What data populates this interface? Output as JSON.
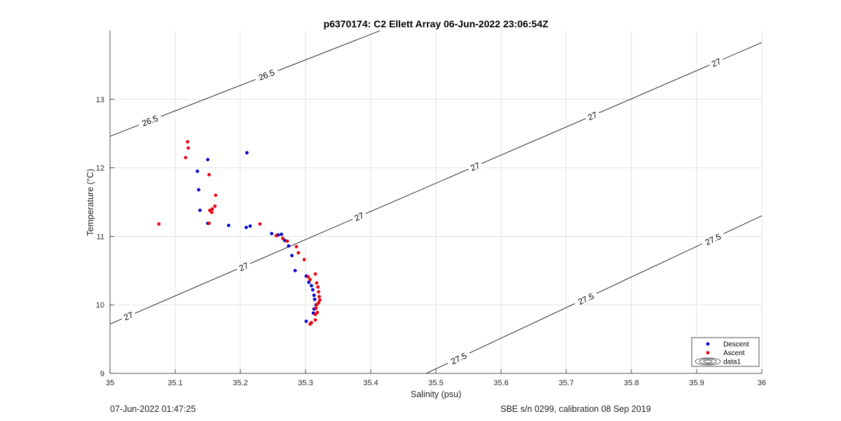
{
  "chart_data": {
    "type": "scatter",
    "title": "p6370174: C2 Ellett Array 06-Jun-2022 23:06:54Z",
    "xlabel": "Salinity (psu)",
    "ylabel": "Temperature (°C)",
    "xlim": [
      35,
      36
    ],
    "ylim": [
      9,
      14
    ],
    "xticks": [
      "35",
      "35.1",
      "35.2",
      "35.3",
      "35.4",
      "35.5",
      "35.6",
      "35.7",
      "35.8",
      "35.9",
      "36"
    ],
    "yticks": [
      "9",
      "10",
      "11",
      "12",
      "13"
    ],
    "grid": true,
    "legend_position": "bottom-right",
    "series": [
      {
        "name": "Descent",
        "color": "#0000cc",
        "points": [
          [
            35.15,
            12.12
          ],
          [
            35.21,
            12.22
          ],
          [
            35.134,
            11.95
          ],
          [
            35.136,
            11.68
          ],
          [
            35.138,
            11.38
          ],
          [
            35.15,
            11.19
          ],
          [
            35.182,
            11.16
          ],
          [
            35.209,
            11.13
          ],
          [
            35.215,
            11.15
          ],
          [
            35.248,
            11.04
          ],
          [
            35.258,
            11.02
          ],
          [
            35.263,
            11.03
          ],
          [
            35.268,
            10.94
          ],
          [
            35.274,
            10.86
          ],
          [
            35.279,
            10.72
          ],
          [
            35.284,
            10.5
          ],
          [
            35.301,
            10.42
          ],
          [
            35.305,
            10.33
          ],
          [
            35.309,
            10.28
          ],
          [
            35.311,
            10.22
          ],
          [
            35.313,
            10.14
          ],
          [
            35.314,
            10.08
          ],
          [
            35.316,
            10.0
          ],
          [
            35.313,
            9.94
          ],
          [
            35.312,
            9.88
          ],
          [
            35.301,
            9.76
          ]
        ]
      },
      {
        "name": "Ascent",
        "color": "#e8000b",
        "points": [
          [
            35.119,
            12.38
          ],
          [
            35.12,
            12.29
          ],
          [
            35.116,
            12.15
          ],
          [
            35.152,
            11.9
          ],
          [
            35.162,
            11.6
          ],
          [
            35.161,
            11.44
          ],
          [
            35.157,
            11.4
          ],
          [
            35.153,
            11.38
          ],
          [
            35.156,
            11.35
          ],
          [
            35.152,
            11.19
          ],
          [
            35.075,
            11.18
          ],
          [
            35.23,
            11.18
          ],
          [
            35.255,
            11.01
          ],
          [
            35.265,
            10.97
          ],
          [
            35.272,
            10.93
          ],
          [
            35.286,
            10.85
          ],
          [
            35.289,
            10.76
          ],
          [
            35.298,
            10.66
          ],
          [
            35.304,
            10.41
          ],
          [
            35.307,
            10.37
          ],
          [
            35.315,
            10.45
          ],
          [
            35.317,
            10.32
          ],
          [
            35.319,
            10.26
          ],
          [
            35.32,
            10.19
          ],
          [
            35.321,
            10.12
          ],
          [
            35.322,
            10.07
          ],
          [
            35.32,
            10.03
          ],
          [
            35.317,
            10.0
          ],
          [
            35.316,
            9.95
          ],
          [
            35.318,
            9.89
          ],
          [
            35.315,
            9.86
          ],
          [
            35.315,
            9.78
          ],
          [
            35.309,
            9.74
          ],
          [
            35.307,
            9.72
          ]
        ]
      }
    ],
    "density_contours": [
      {
        "sigma": "26.5",
        "line": [
          [
            35.0,
            12.46
          ],
          [
            35.414,
            14.0
          ]
        ],
        "labels": [
          [
            35.061,
            12.69
          ],
          [
            35.24,
            13.36
          ]
        ]
      },
      {
        "sigma": "27",
        "line": [
          [
            35.0,
            9.72
          ],
          [
            36.0,
            13.83
          ]
        ],
        "labels": [
          [
            35.028,
            9.84
          ],
          [
            35.205,
            10.56
          ],
          [
            35.382,
            11.29
          ],
          [
            35.56,
            12.02
          ],
          [
            35.74,
            12.76
          ],
          [
            35.93,
            13.54
          ]
        ]
      },
      {
        "sigma": "27.5",
        "line": [
          [
            35.485,
            9.0
          ],
          [
            36.0,
            11.3
          ]
        ],
        "labels": [
          [
            35.535,
            9.22
          ],
          [
            35.73,
            10.09
          ],
          [
            35.925,
            10.96
          ]
        ]
      }
    ],
    "legend": [
      {
        "label": "Descent",
        "marker": "dot",
        "color": "#0000cc"
      },
      {
        "label": "Ascent",
        "marker": "dot",
        "color": "#e8000b"
      },
      {
        "label": "data1",
        "marker": "contour"
      }
    ]
  },
  "footer": {
    "left": "07-Jun-2022 01:47:25",
    "right": "SBE s/n 0299, calibration 08 Sep 2019"
  }
}
